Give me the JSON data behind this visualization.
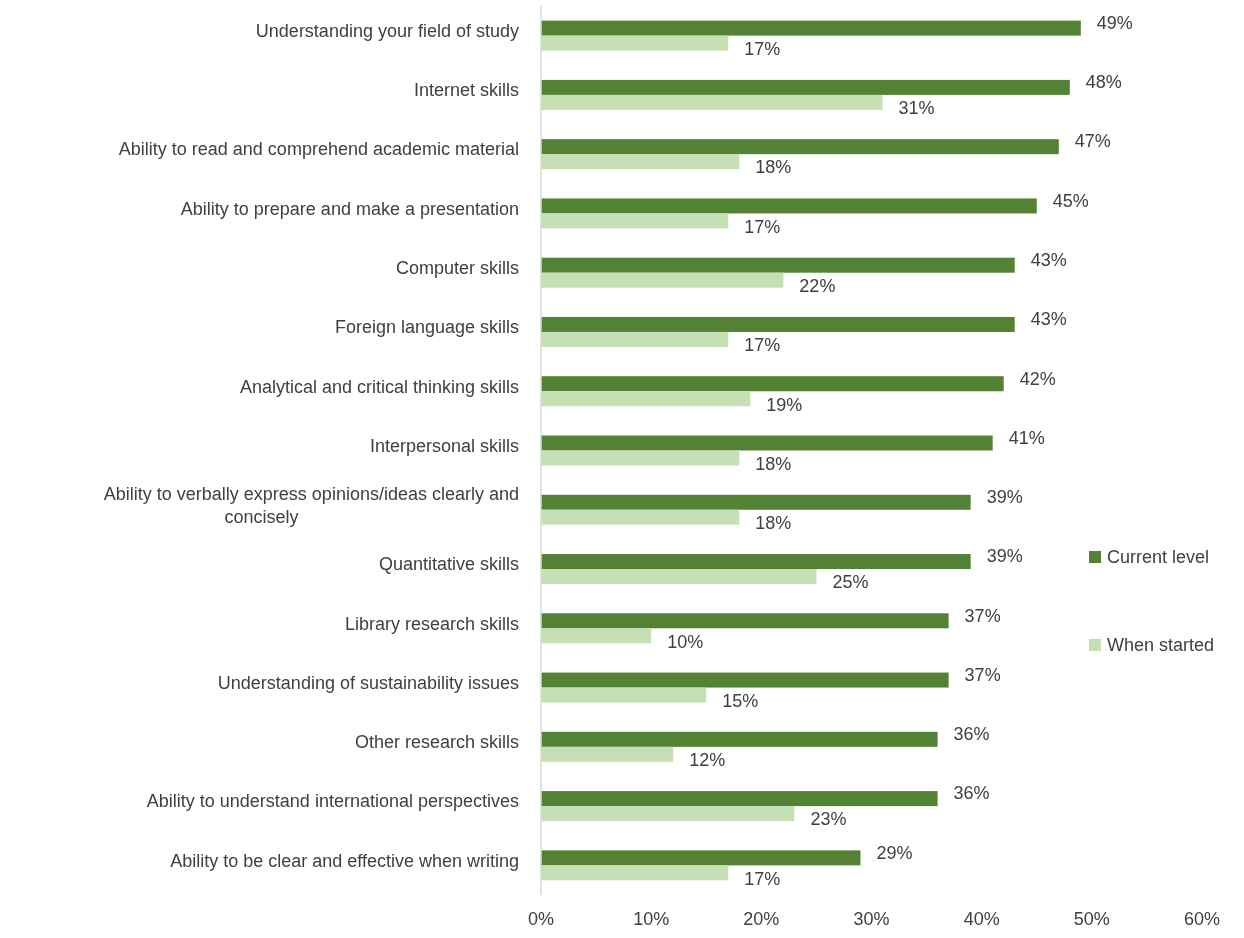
{
  "chart_data": {
    "type": "bar",
    "orientation": "horizontal",
    "categories": [
      "Understanding your field of study",
      "Internet skills",
      "Ability to read and comprehend academic material",
      "Ability to prepare and make a presentation",
      "Computer skills",
      "Foreign language skills",
      "Analytical and critical thinking skills",
      "Interpersonal skills",
      "Ability to verbally express opinions/ideas clearly and concisely",
      "Quantitative skills",
      "Library research skills",
      "Understanding of sustainability issues",
      "Other research skills",
      "Ability to understand international perspectives",
      "Ability to be clear and effective when writing"
    ],
    "series": [
      {
        "name": "Current level",
        "color": "#548235",
        "values": [
          49,
          48,
          47,
          45,
          43,
          43,
          42,
          41,
          39,
          39,
          37,
          37,
          36,
          36,
          29
        ],
        "value_labels": [
          "49%",
          "48%",
          "47%",
          "45%",
          "43%",
          "43%",
          "42%",
          "41%",
          "39%",
          "39%",
          "37%",
          "37%",
          "36%",
          "36%",
          "29%"
        ]
      },
      {
        "name": "When started",
        "color": "#c5e0b4",
        "values": [
          17,
          31,
          18,
          17,
          22,
          17,
          19,
          18,
          18,
          25,
          10,
          15,
          12,
          23,
          17
        ],
        "value_labels": [
          "17%",
          "31%",
          "18%",
          "17%",
          "22%",
          "17%",
          "19%",
          "18%",
          "18%",
          "25%",
          "10%",
          "15%",
          "12%",
          "23%",
          "17%"
        ]
      }
    ],
    "xlim": [
      0,
      60
    ],
    "xticks": [
      {
        "value": 0,
        "label": "0%"
      },
      {
        "value": 10,
        "label": "10%"
      },
      {
        "value": 20,
        "label": "20%"
      },
      {
        "value": 30,
        "label": "30%"
      },
      {
        "value": 40,
        "label": "40%"
      },
      {
        "value": 50,
        "label": "50%"
      },
      {
        "value": 60,
        "label": "60%"
      }
    ],
    "grid": false,
    "legend": "right"
  }
}
